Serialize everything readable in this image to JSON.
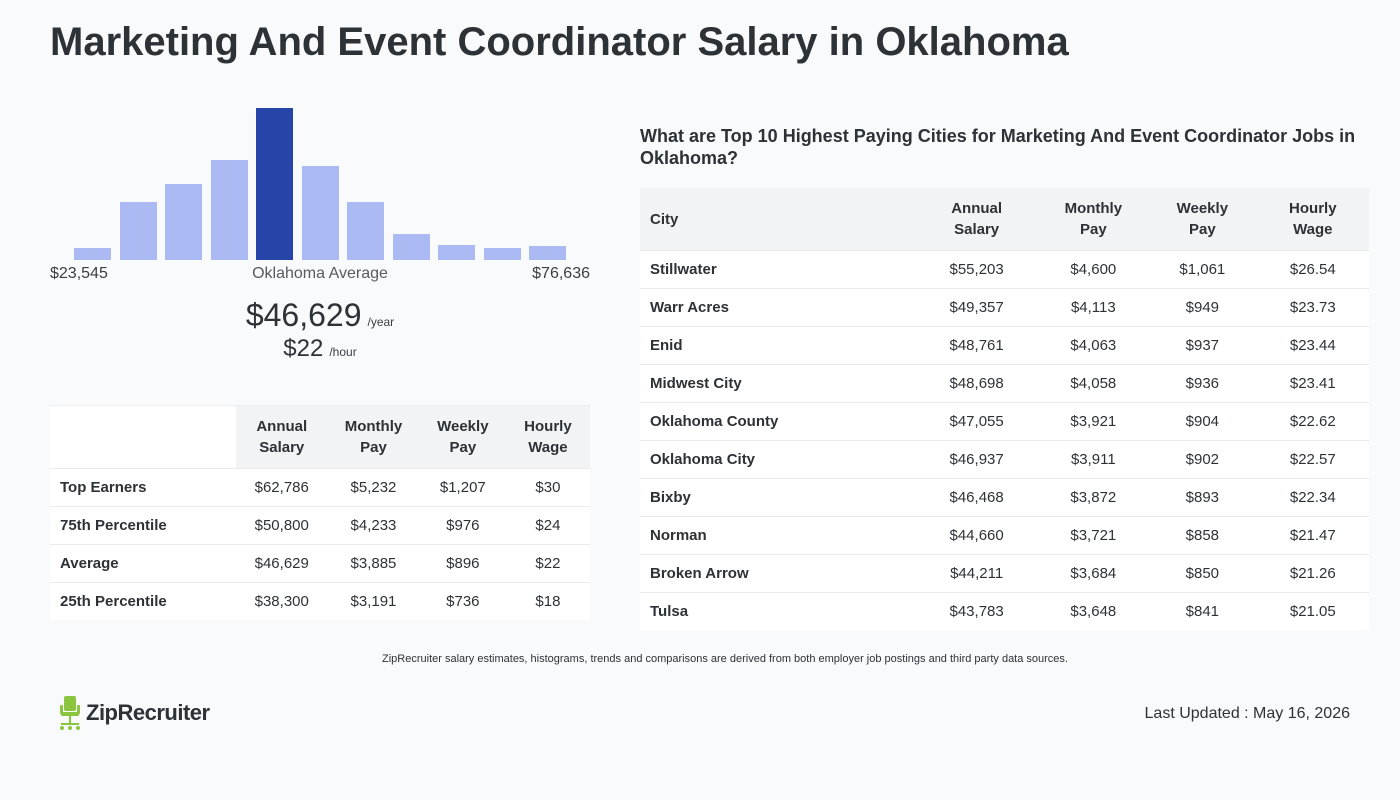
{
  "title": "Marketing And Event Coordinator Salary in Oklahoma",
  "histogram": {
    "min_label": "$23,545",
    "max_label": "$76,636",
    "center_label": "Oklahoma Average",
    "active_index": 4,
    "bar_color": "#abbaf2",
    "active_color": "#2745a8"
  },
  "chart_data": {
    "type": "bar",
    "categories": [
      "1",
      "2",
      "3",
      "4",
      "5",
      "6",
      "7",
      "8",
      "9",
      "10",
      "11"
    ],
    "values": [
      8,
      38,
      50,
      66,
      100,
      62,
      38,
      17,
      10,
      8,
      9
    ],
    "xlabel": "",
    "ylabel": "",
    "ylim": [
      0,
      100
    ]
  },
  "average": {
    "annual": "$46,629",
    "annual_unit": "/year",
    "hourly": "$22",
    "hourly_unit": "/hour"
  },
  "percentile_table": {
    "headers": [
      "",
      "Annual\nSalary",
      "Monthly\nPay",
      "Weekly\nPay",
      "Hourly\nWage"
    ],
    "header_lines": [
      [
        "",
        ""
      ],
      [
        "Annual",
        "Salary"
      ],
      [
        "Monthly",
        "Pay"
      ],
      [
        "Weekly",
        "Pay"
      ],
      [
        "Hourly",
        "Wage"
      ]
    ],
    "rows": [
      [
        "Top Earners",
        "$62,786",
        "$5,232",
        "$1,207",
        "$30"
      ],
      [
        "75th Percentile",
        "$50,800",
        "$4,233",
        "$976",
        "$24"
      ],
      [
        "Average",
        "$46,629",
        "$3,885",
        "$896",
        "$22"
      ],
      [
        "25th Percentile",
        "$38,300",
        "$3,191",
        "$736",
        "$18"
      ]
    ]
  },
  "cities": {
    "heading": "What are Top 10 Highest Paying Cities for Marketing And Event Coordinator Jobs in Oklahoma?",
    "header_lines": [
      [
        "City",
        ""
      ],
      [
        "Annual",
        "Salary"
      ],
      [
        "Monthly",
        "Pay"
      ],
      [
        "Weekly",
        "Pay"
      ],
      [
        "Hourly",
        "Wage"
      ]
    ],
    "rows": [
      [
        "Stillwater",
        "$55,203",
        "$4,600",
        "$1,061",
        "$26.54"
      ],
      [
        "Warr Acres",
        "$49,357",
        "$4,113",
        "$949",
        "$23.73"
      ],
      [
        "Enid",
        "$48,761",
        "$4,063",
        "$937",
        "$23.44"
      ],
      [
        "Midwest City",
        "$48,698",
        "$4,058",
        "$936",
        "$23.41"
      ],
      [
        "Oklahoma County",
        "$47,055",
        "$3,921",
        "$904",
        "$22.62"
      ],
      [
        "Oklahoma City",
        "$46,937",
        "$3,911",
        "$902",
        "$22.57"
      ],
      [
        "Bixby",
        "$46,468",
        "$3,872",
        "$893",
        "$22.34"
      ],
      [
        "Norman",
        "$44,660",
        "$3,721",
        "$858",
        "$21.47"
      ],
      [
        "Broken Arrow",
        "$44,211",
        "$3,684",
        "$850",
        "$21.26"
      ],
      [
        "Tulsa",
        "$43,783",
        "$3,648",
        "$841",
        "$21.05"
      ]
    ]
  },
  "footer": {
    "disclaimer": "ZipRecruiter salary estimates, histograms, trends and comparisons are derived from both employer job postings and third party data sources.",
    "logo_text": "ZipRecruiter",
    "logo_icon": "chair-icon",
    "logo_color": "#8bc540",
    "last_updated": "Last Updated : May 16, 2026"
  }
}
